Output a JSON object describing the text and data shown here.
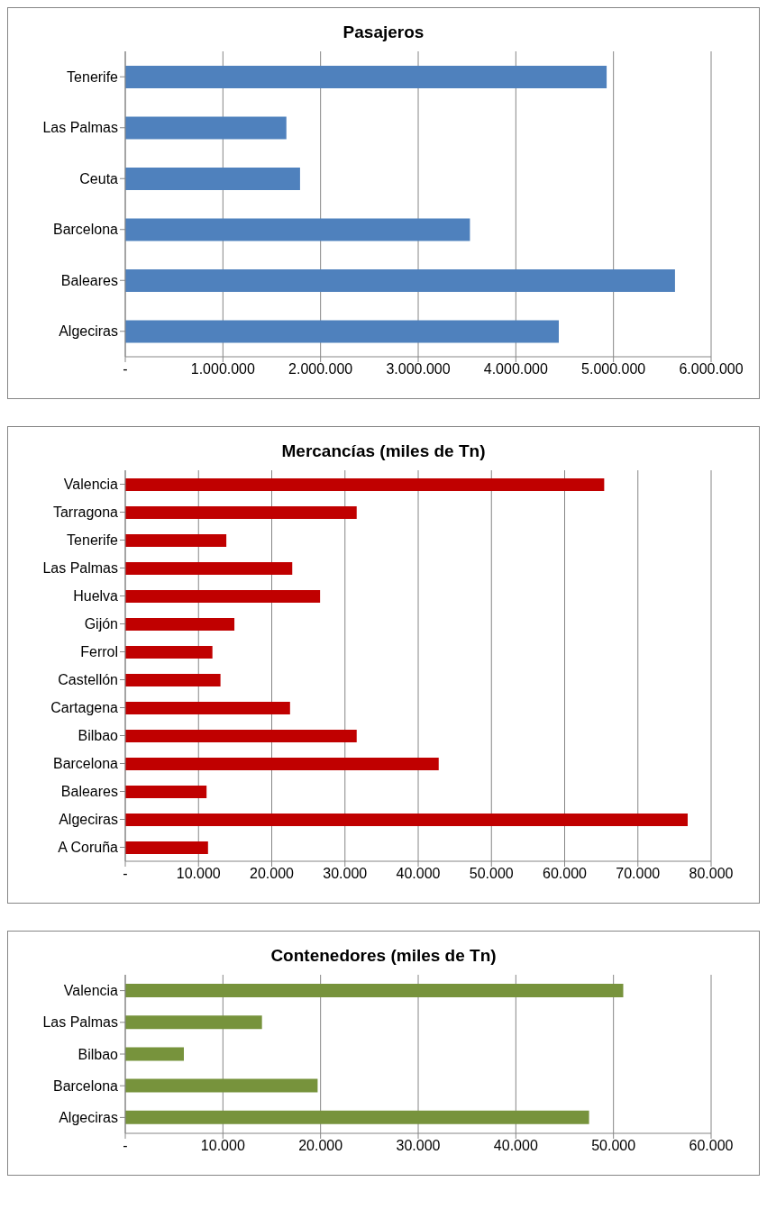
{
  "chart_data": [
    {
      "type": "bar",
      "orientation": "horizontal",
      "title": "Pasajeros",
      "categories": [
        "Tenerife",
        "Las Palmas",
        "Ceuta",
        "Barcelona",
        "Baleares",
        "Algeciras"
      ],
      "values": [
        4930000,
        1650000,
        1790000,
        3530000,
        5630000,
        4440000
      ],
      "color": "#4f81bd",
      "xlim": [
        0,
        6000000
      ],
      "xticks": [
        {
          "value": 0,
          "label": "-"
        },
        {
          "value": 1000000,
          "label": "1.000.000"
        },
        {
          "value": 2000000,
          "label": "2.000.000"
        },
        {
          "value": 3000000,
          "label": "3.000.000"
        },
        {
          "value": 4000000,
          "label": "4.000.000"
        },
        {
          "value": 5000000,
          "label": "5.000.000"
        },
        {
          "value": 6000000,
          "label": "6.000.000"
        }
      ],
      "grid": "x"
    },
    {
      "type": "bar",
      "orientation": "horizontal",
      "title": "Mercancías (miles de Tn)",
      "categories": [
        "Valencia",
        "Tarragona",
        "Tenerife",
        "Las Palmas",
        "Huelva",
        "Gijón",
        "Ferrol",
        "Castellón",
        "Cartagena",
        "Bilbao",
        "Barcelona",
        "Baleares",
        "Algeciras",
        "A Coruña"
      ],
      "values": [
        65400,
        31600,
        13800,
        22800,
        26600,
        14900,
        11900,
        13000,
        22500,
        31600,
        42800,
        11100,
        76800,
        11300
      ],
      "color": "#c00000",
      "xlim": [
        0,
        80000
      ],
      "xticks": [
        {
          "value": 0,
          "label": "-"
        },
        {
          "value": 10000,
          "label": "10.000"
        },
        {
          "value": 20000,
          "label": "20.000"
        },
        {
          "value": 30000,
          "label": "30.000"
        },
        {
          "value": 40000,
          "label": "40.000"
        },
        {
          "value": 50000,
          "label": "50.000"
        },
        {
          "value": 60000,
          "label": "60.000"
        },
        {
          "value": 70000,
          "label": "70.000"
        },
        {
          "value": 80000,
          "label": "80.000"
        }
      ],
      "grid": "x"
    },
    {
      "type": "bar",
      "orientation": "horizontal",
      "title": "Contenedores (miles de Tn)",
      "categories": [
        "Valencia",
        "Las Palmas",
        "Bilbao",
        "Barcelona",
        "Algeciras"
      ],
      "values": [
        51000,
        14000,
        6000,
        19700,
        47500
      ],
      "color": "#77933c",
      "xlim": [
        0,
        60000
      ],
      "xticks": [
        {
          "value": 0,
          "label": "-"
        },
        {
          "value": 10000,
          "label": "10.000"
        },
        {
          "value": 20000,
          "label": "20.000"
        },
        {
          "value": 30000,
          "label": "30.000"
        },
        {
          "value": 40000,
          "label": "40.000"
        },
        {
          "value": 50000,
          "label": "50.000"
        },
        {
          "value": 60000,
          "label": "60.000"
        }
      ],
      "grid": "x"
    }
  ]
}
